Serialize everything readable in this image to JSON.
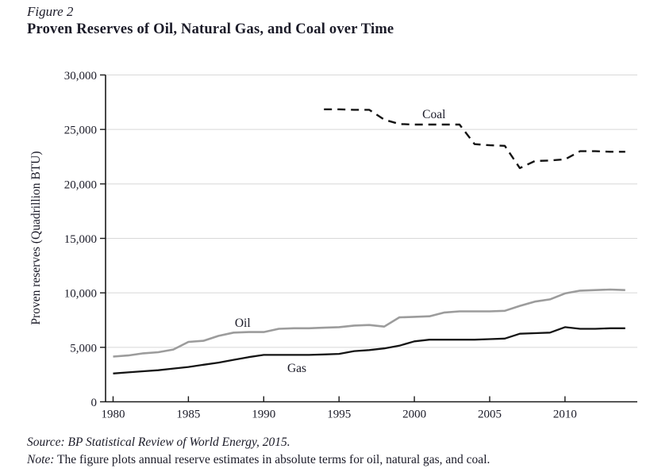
{
  "figure": {
    "label": "Figure 2",
    "title": "Proven Reserves of Oil, Natural Gas, and Coal over Time"
  },
  "footer": {
    "source": "Source: BP Statistical Review of World Energy, 2015.",
    "note_label": "Note:",
    "note_text": " The figure plots annual reserve estimates in absolute terms for oil, natural gas, and coal."
  },
  "colors": {
    "axis": "#1a1a1a",
    "gridline": "#d8d8d8",
    "text": "#1b1b28",
    "oil_line": "#9c9c9c",
    "gas_line": "#141414",
    "coal_line": "#141414"
  },
  "chart_data": {
    "type": "line",
    "title": "Proven Reserves of Oil, Natural Gas, and Coal over Time",
    "xlabel": "",
    "ylabel": "Proven reserves (Quadrillion BTU)",
    "xlim": [
      1979.5,
      2014.8
    ],
    "ylim": [
      0,
      30000
    ],
    "grid": "horizontal-light",
    "legend": "inline-labels",
    "yticks": [
      0,
      5000,
      10000,
      15000,
      20000,
      25000,
      30000
    ],
    "ytick_labels": [
      "0",
      "5,000",
      "10,000",
      "15,000",
      "20,000",
      "25,000",
      "30,000"
    ],
    "xticks": [
      1980,
      1985,
      1990,
      1995,
      2000,
      2005,
      2010
    ],
    "xtick_labels": [
      "1980",
      "1985",
      "1990",
      "1995",
      "2000",
      "2005",
      "2010"
    ],
    "series": [
      {
        "name": "Coal",
        "style": "dashed",
        "color": "#141414",
        "width": 2.4,
        "label": {
          "text": "Coal",
          "x": 2001.3,
          "y": 26400
        },
        "years": [
          1994,
          1995,
          1996,
          1997,
          1998,
          1999,
          2000,
          2001,
          2002,
          2003,
          2004,
          2005,
          2006,
          2007,
          2008,
          2009,
          2010,
          2011,
          2012,
          2013,
          2014
        ],
        "values": [
          26850,
          26850,
          26800,
          26800,
          25900,
          25500,
          25450,
          25450,
          25450,
          25450,
          23650,
          23550,
          23500,
          21450,
          22100,
          22150,
          22250,
          23000,
          23000,
          22950,
          22950
        ]
      },
      {
        "name": "Oil",
        "style": "solid",
        "color": "#9c9c9c",
        "width": 2.6,
        "label": {
          "text": "Oil",
          "x": 1988.6,
          "y": 7240
        },
        "years": [
          1980,
          1981,
          1982,
          1983,
          1984,
          1985,
          1986,
          1987,
          1988,
          1989,
          1990,
          1991,
          1992,
          1993,
          1994,
          1995,
          1996,
          1997,
          1998,
          1999,
          2000,
          2001,
          2002,
          2003,
          2004,
          2005,
          2006,
          2007,
          2008,
          2009,
          2010,
          2011,
          2012,
          2013,
          2014
        ],
        "values": [
          4150,
          4250,
          4450,
          4550,
          4800,
          5500,
          5600,
          6050,
          6350,
          6400,
          6400,
          6700,
          6750,
          6750,
          6800,
          6850,
          7000,
          7050,
          6900,
          7750,
          7800,
          7850,
          8200,
          8300,
          8300,
          8300,
          8350,
          8800,
          9200,
          9400,
          9950,
          10200,
          10250,
          10300,
          10250
        ]
      },
      {
        "name": "Gas",
        "style": "solid",
        "color": "#141414",
        "width": 2.3,
        "label": {
          "text": "Gas",
          "x": 1992.2,
          "y": 3090
        },
        "years": [
          1980,
          1981,
          1982,
          1983,
          1984,
          1985,
          1986,
          1987,
          1988,
          1989,
          1990,
          1991,
          1992,
          1993,
          1994,
          1995,
          1996,
          1997,
          1998,
          1999,
          2000,
          2001,
          2002,
          2003,
          2004,
          2005,
          2006,
          2007,
          2008,
          2009,
          2010,
          2011,
          2012,
          2013,
          2014
        ],
        "values": [
          2600,
          2700,
          2800,
          2900,
          3050,
          3200,
          3400,
          3600,
          3850,
          4100,
          4300,
          4300,
          4300,
          4300,
          4350,
          4400,
          4650,
          4750,
          4900,
          5150,
          5550,
          5700,
          5700,
          5700,
          5700,
          5750,
          5800,
          6250,
          6300,
          6350,
          6850,
          6700,
          6700,
          6750,
          6750
        ]
      }
    ]
  }
}
